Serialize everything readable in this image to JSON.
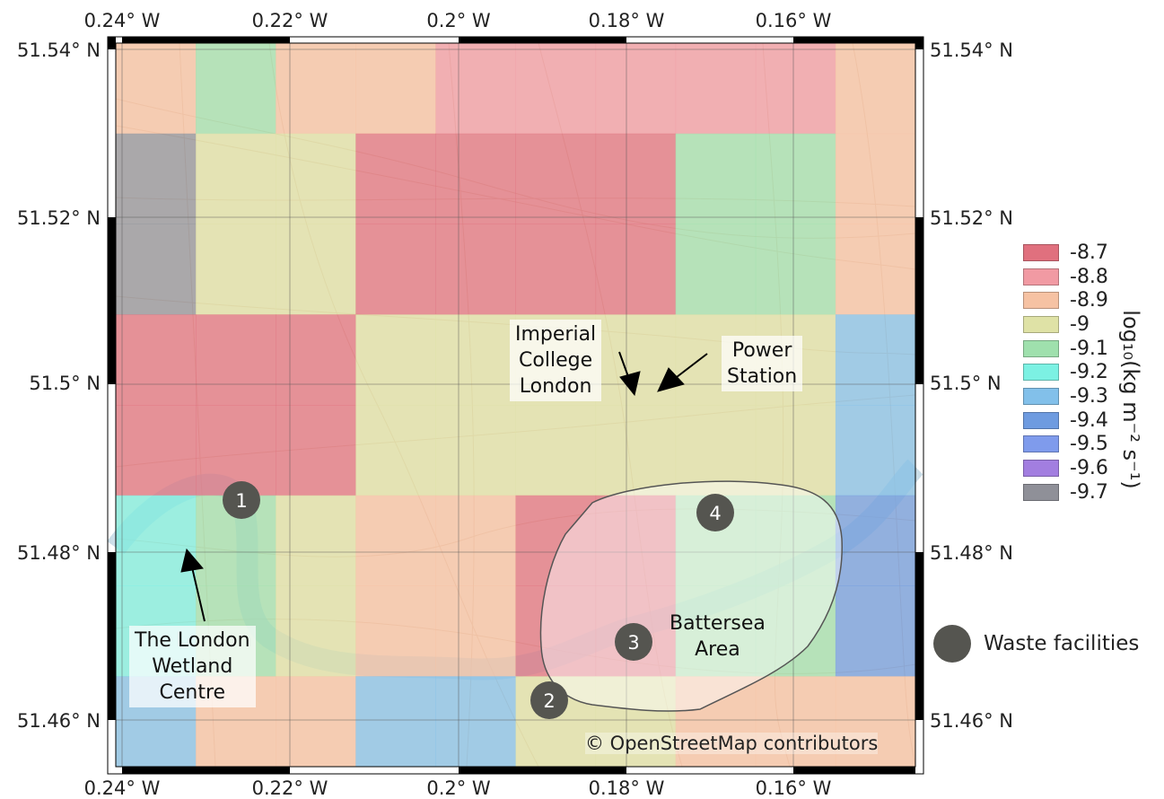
{
  "map": {
    "x_ticks": [
      "0.24° W",
      "0.22° W",
      "0.2° W",
      "0.18° W",
      "0.16° W"
    ],
    "y_ticks": [
      "51.54° N",
      "51.52° N",
      "51.5° N",
      "51.48° N",
      "51.46° N"
    ],
    "attribution": "© OpenStreetMap contributors"
  },
  "grid": {
    "row_values": [
      [
        -8.9,
        -9.1,
        -8.9,
        -8.9,
        -8.8,
        -8.8,
        -8.8,
        -8.8,
        -8.8,
        -8.9
      ],
      [
        -9.7,
        -9.0,
        -9.0,
        -8.7,
        -8.7,
        -8.7,
        -8.7,
        -9.1,
        -9.1,
        -8.9
      ],
      [
        -9.7,
        -9.0,
        -9.0,
        -8.7,
        -8.7,
        -8.7,
        -8.7,
        -9.1,
        -9.1,
        -8.9
      ],
      [
        -8.7,
        -8.7,
        -8.7,
        -9.0,
        -9.0,
        -9.0,
        -9.0,
        -9.0,
        -9.0,
        -9.3
      ],
      [
        -8.7,
        -8.7,
        -8.7,
        -9.0,
        -9.0,
        -9.0,
        -9.0,
        -9.0,
        -9.0,
        -9.3
      ],
      [
        -9.2,
        -9.1,
        -9.0,
        -8.9,
        -8.9,
        -8.7,
        -8.7,
        -9.1,
        -9.1,
        -9.4
      ],
      [
        -9.2,
        -9.1,
        -9.0,
        -8.9,
        -8.9,
        -8.7,
        -8.7,
        -9.1,
        -9.1,
        -9.4
      ],
      [
        -9.3,
        -8.9,
        -8.9,
        -9.3,
        -9.3,
        -9.0,
        -9.0,
        -8.9,
        -8.9,
        -8.9
      ]
    ]
  },
  "legend": {
    "title": "log₁₀(kg m⁻² s⁻¹)",
    "entries": [
      {
        "label": "-8.7",
        "color": "#e0707e"
      },
      {
        "label": "-8.8",
        "color": "#f19aa3"
      },
      {
        "label": "-8.9",
        "color": "#f6c2a3"
      },
      {
        "label": "-9",
        "color": "#dfe2a6"
      },
      {
        "label": "-9.1",
        "color": "#9fe0ad"
      },
      {
        "label": "-9.2",
        "color": "#7cf1e3"
      },
      {
        "label": "-9.3",
        "color": "#82c0ea"
      },
      {
        "label": "-9.4",
        "color": "#6e9be0"
      },
      {
        "label": "-9.5",
        "color": "#7f9bec"
      },
      {
        "label": "-9.6",
        "color": "#a27ee0"
      },
      {
        "label": "-9.7",
        "color": "#8f9098"
      }
    ]
  },
  "annotations": {
    "imperial_1": "Imperial",
    "imperial_2": "College",
    "imperial_3": "London",
    "power_1": "Power",
    "power_2": "Station",
    "battersea_1": "Battersea",
    "battersea_2": "Area",
    "wetland_1": "The London",
    "wetland_2": "Wetland",
    "wetland_3": "Centre"
  },
  "facilities": [
    {
      "label": "1"
    },
    {
      "label": "2"
    },
    {
      "label": "3"
    },
    {
      "label": "4"
    }
  ],
  "facility_legend": "Waste facilities"
}
